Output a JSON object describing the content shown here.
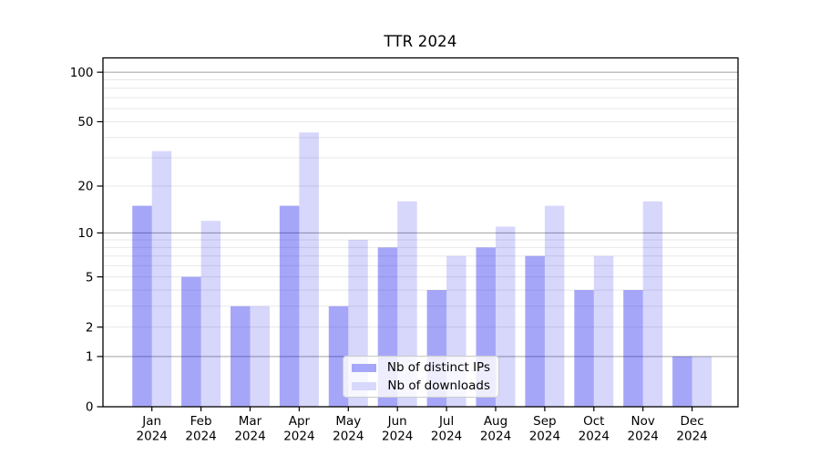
{
  "title": "TTR 2024",
  "legend": {
    "items": [
      {
        "label": "Nb of distinct IPs",
        "swatch_color": "#a6a6fa"
      },
      {
        "label": "Nb of downloads",
        "swatch_color": "#d8d8fc"
      }
    ]
  },
  "chart_data": {
    "type": "bar",
    "title": "TTR 2024",
    "categories": [
      "Jan",
      "Feb",
      "Mar",
      "Apr",
      "May",
      "Jun",
      "Jul",
      "Aug",
      "Sep",
      "Oct",
      "Nov",
      "Dec"
    ],
    "year": "2024",
    "x_tick_labels": [
      "Jan 2024",
      "Feb 2024",
      "Mar 2024",
      "Apr 2024",
      "May 2024",
      "Jun 2024",
      "Jul 2024",
      "Aug 2024",
      "Sep 2024",
      "Oct 2024",
      "Nov 2024",
      "Dec 2024"
    ],
    "series": [
      {
        "name": "Nb of distinct IPs",
        "color": "#0000ee",
        "opacity": 0.35,
        "values": [
          15,
          5,
          3,
          15,
          3,
          8,
          4,
          8,
          7,
          4,
          4,
          1
        ]
      },
      {
        "name": "Nb of downloads",
        "color": "#0000ee",
        "opacity": 0.155,
        "values": [
          33,
          12,
          3,
          43,
          9,
          16,
          7,
          11,
          15,
          7,
          16,
          1
        ]
      }
    ],
    "y_axis": {
      "scale": "log1p",
      "min": 0,
      "max_displayed": 122,
      "ticks": [
        0,
        1,
        2,
        5,
        10,
        20,
        50,
        100
      ],
      "tick_labels": [
        "0",
        "1",
        "2",
        "5",
        "10",
        "20",
        "50",
        "100"
      ],
      "major_gridlines": [
        1,
        10,
        100
      ],
      "minor_gridlines": [
        2,
        3,
        4,
        5,
        6,
        7,
        8,
        9,
        20,
        30,
        40,
        50,
        60,
        70,
        80,
        90
      ]
    },
    "grid": true,
    "legend_position": "lower center",
    "colors": {
      "grid_major": "#ababab",
      "grid_minor": "#e8e8e8",
      "spine": "#000000",
      "text": "#000000"
    }
  }
}
